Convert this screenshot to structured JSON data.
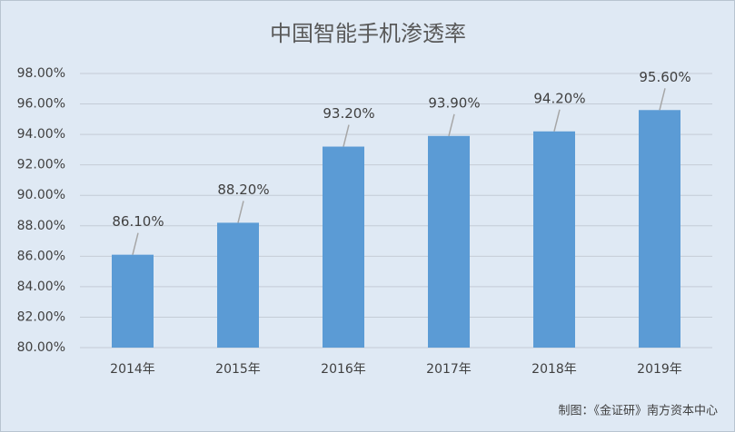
{
  "chart_data": {
    "type": "bar",
    "title": "中国智能手机渗透率",
    "categories": [
      "2014年",
      "2015年",
      "2016年",
      "2017年",
      "2018年",
      "2019年"
    ],
    "values": [
      86.1,
      88.2,
      93.2,
      93.9,
      94.2,
      95.6
    ],
    "value_labels": [
      "86.10%",
      "88.20%",
      "93.20%",
      "93.90%",
      "94.20%",
      "95.60%"
    ],
    "color": "#5b9bd5",
    "ylim": [
      80,
      98
    ],
    "yticks": [
      {
        "value": 80,
        "label": "80.00%"
      },
      {
        "value": 82,
        "label": "82.00%"
      },
      {
        "value": 84,
        "label": "84.00%"
      },
      {
        "value": 86,
        "label": "86.00%"
      },
      {
        "value": 88,
        "label": "88.00%"
      },
      {
        "value": 90,
        "label": "90.00%"
      },
      {
        "value": 92,
        "label": "92.00%"
      },
      {
        "value": 94,
        "label": "94.00%"
      },
      {
        "value": 96,
        "label": "96.00%"
      },
      {
        "value": 98,
        "label": "98.00%"
      }
    ],
    "grid": true,
    "source": "制图：《金证研》南方资本中心"
  }
}
